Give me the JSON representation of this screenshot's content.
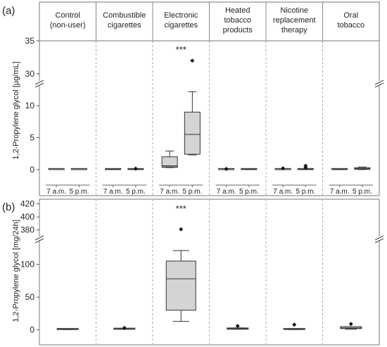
{
  "groups": [
    {
      "line1": "Control",
      "line2": "(non-user)",
      "line3": ""
    },
    {
      "line1": "Combustible",
      "line2": "cigarettes",
      "line3": ""
    },
    {
      "line1": "Electronic",
      "line2": "cigarettes",
      "line3": ""
    },
    {
      "line1": "Heated",
      "line2": "tobacco",
      "line3": "products"
    },
    {
      "line1": "Nicotine",
      "line2": "replacement",
      "line3": "therapy"
    },
    {
      "line1": "Oral",
      "line2": "tobacco",
      "line3": ""
    }
  ],
  "time_labels": [
    "7 a.m.",
    "5 p.m."
  ],
  "chart_data": [
    {
      "type": "box",
      "panel_label": "(a)",
      "ylabel": "1,2-Propylene glycol [µg/mL]",
      "axis_break": true,
      "lower_range": [
        -1,
        13
      ],
      "upper_range": [
        28.8,
        35
      ],
      "yticks": [
        0,
        5,
        10,
        30,
        35
      ],
      "significance": {
        "group": 2,
        "label": "***"
      },
      "boxes": [
        {
          "group": 0,
          "time": "7 a.m.",
          "q1": 0.0,
          "median": 0.0,
          "q3": 0.05,
          "min": 0.0,
          "max": 0.05,
          "outliers": []
        },
        {
          "group": 0,
          "time": "5 p.m.",
          "q1": 0.0,
          "median": 0.0,
          "q3": 0.05,
          "min": 0.0,
          "max": 0.05,
          "outliers": []
        },
        {
          "group": 1,
          "time": "7 a.m.",
          "q1": 0.0,
          "median": 0.05,
          "q3": 0.1,
          "min": 0.0,
          "max": 0.1,
          "outliers": []
        },
        {
          "group": 1,
          "time": "5 p.m.",
          "q1": 0.0,
          "median": 0.05,
          "q3": 0.1,
          "min": 0.0,
          "max": 0.1,
          "outliers": [
            0.15
          ]
        },
        {
          "group": 2,
          "time": "7 a.m.",
          "q1": 0.35,
          "median": 0.6,
          "q3": 2.0,
          "min": 0.3,
          "max": 2.9,
          "outliers": []
        },
        {
          "group": 2,
          "time": "5 p.m.",
          "q1": 2.4,
          "median": 5.5,
          "q3": 9.0,
          "min": 2.3,
          "max": 12.2,
          "outliers": [
            32
          ]
        },
        {
          "group": 3,
          "time": "7 a.m.",
          "q1": 0.0,
          "median": 0.0,
          "q3": 0.05,
          "min": 0.0,
          "max": 0.05,
          "outliers": [
            0.1
          ]
        },
        {
          "group": 3,
          "time": "5 p.m.",
          "q1": 0.0,
          "median": 0.05,
          "q3": 0.1,
          "min": 0.0,
          "max": 0.1,
          "outliers": []
        },
        {
          "group": 4,
          "time": "7 a.m.",
          "q1": 0.0,
          "median": 0.0,
          "q3": 0.05,
          "min": 0.0,
          "max": 0.05,
          "outliers": [
            0.2
          ]
        },
        {
          "group": 4,
          "time": "5 p.m.",
          "q1": 0.0,
          "median": 0.05,
          "q3": 0.1,
          "min": 0.0,
          "max": 0.1,
          "outliers": [
            0.3,
            0.6
          ]
        },
        {
          "group": 5,
          "time": "7 a.m.",
          "q1": 0.0,
          "median": 0.05,
          "q3": 0.1,
          "min": 0.0,
          "max": 0.1,
          "outliers": []
        },
        {
          "group": 5,
          "time": "5 p.m.",
          "q1": 0.05,
          "median": 0.15,
          "q3": 0.3,
          "min": 0.0,
          "max": 0.4,
          "outliers": []
        }
      ]
    },
    {
      "type": "box",
      "panel_label": "(b)",
      "ylabel": "1,2-Propylene glycol [mg/24h]",
      "axis_break": true,
      "lower_range": [
        -10,
        135
      ],
      "upper_range": [
        370,
        425
      ],
      "yticks": [
        0,
        50,
        100,
        380,
        400,
        420
      ],
      "significance": {
        "group": 2,
        "label": "***"
      },
      "boxes": [
        {
          "group": 0,
          "q1": 0.5,
          "median": 1,
          "q3": 1.5,
          "min": 0.5,
          "max": 1.5,
          "outliers": []
        },
        {
          "group": 1,
          "q1": 1,
          "median": 1.5,
          "q3": 2,
          "min": 1,
          "max": 2,
          "outliers": [
            3
          ]
        },
        {
          "group": 2,
          "q1": 30,
          "median": 78,
          "q3": 105,
          "min": 13,
          "max": 121,
          "outliers": [
            381
          ]
        },
        {
          "group": 3,
          "q1": 1,
          "median": 2,
          "q3": 3,
          "min": 1,
          "max": 3,
          "outliers": [
            6
          ]
        },
        {
          "group": 4,
          "q1": 0.5,
          "median": 1,
          "q3": 1.5,
          "min": 0.5,
          "max": 1.5,
          "outliers": [
            8
          ]
        },
        {
          "group": 5,
          "q1": 2,
          "median": 3,
          "q3": 5,
          "min": 1,
          "max": 5,
          "outliers": [
            9
          ]
        }
      ]
    }
  ]
}
